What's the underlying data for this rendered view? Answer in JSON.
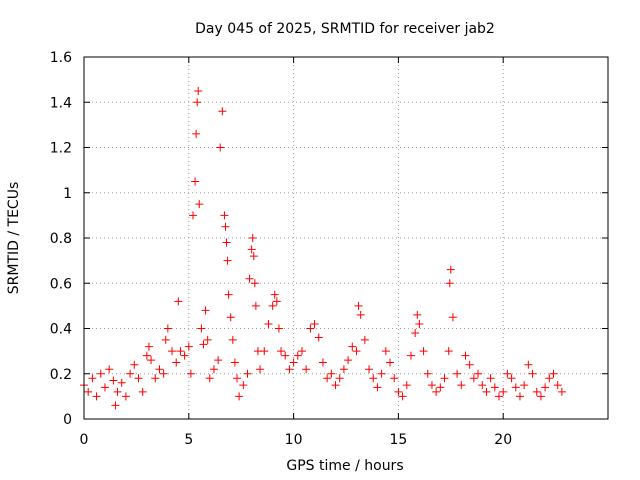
{
  "chart_data": {
    "type": "scatter",
    "title": "Day 045 of 2025, SRMTID for receiver jab2",
    "xlabel": "GPS time / hours",
    "ylabel": "SRMTID / TECUs",
    "xlim": [
      0,
      25
    ],
    "ylim": [
      0,
      1.6
    ],
    "x_ticks": [
      0,
      5,
      10,
      15,
      20
    ],
    "x_tick_labels": [
      "0",
      "5",
      "10",
      "15",
      "20"
    ],
    "y_ticks": [
      0,
      0.2,
      0.4,
      0.6,
      0.8,
      1.0,
      1.2,
      1.4,
      1.6
    ],
    "y_tick_labels": [
      "0",
      "0.2",
      "0.4",
      "0.6",
      "0.8",
      "1",
      "1.2",
      "1.4",
      "1.6"
    ],
    "grid": true,
    "marker": "+",
    "colors": {
      "series": "#ff0000",
      "grid": "#a0a0a0",
      "axes": "#000000"
    },
    "series": [
      {
        "name": "SRMTID",
        "x": [
          0.0,
          0.2,
          0.4,
          0.6,
          0.8,
          1.0,
          1.2,
          1.4,
          1.5,
          1.6,
          1.8,
          2.0,
          2.2,
          2.4,
          2.6,
          2.8,
          3.0,
          3.1,
          3.2,
          3.4,
          3.6,
          3.8,
          3.9,
          4.0,
          4.2,
          4.4,
          4.5,
          4.6,
          4.8,
          5.0,
          5.1,
          5.2,
          5.3,
          5.35,
          5.4,
          5.45,
          5.5,
          5.6,
          5.7,
          5.8,
          5.9,
          6.0,
          6.2,
          6.4,
          6.5,
          6.6,
          6.7,
          6.75,
          6.8,
          6.85,
          6.9,
          7.0,
          7.1,
          7.2,
          7.3,
          7.4,
          7.6,
          7.8,
          7.9,
          8.0,
          8.05,
          8.1,
          8.15,
          8.2,
          8.3,
          8.4,
          8.6,
          8.8,
          9.0,
          9.1,
          9.2,
          9.3,
          9.4,
          9.6,
          9.8,
          10.0,
          10.2,
          10.4,
          10.6,
          10.8,
          11.0,
          11.2,
          11.4,
          11.6,
          11.8,
          12.0,
          12.2,
          12.4,
          12.6,
          12.8,
          13.0,
          13.1,
          13.2,
          13.4,
          13.6,
          13.8,
          14.0,
          14.2,
          14.4,
          14.6,
          14.8,
          15.0,
          15.2,
          15.4,
          15.6,
          15.8,
          15.9,
          16.0,
          16.2,
          16.4,
          16.6,
          16.8,
          17.0,
          17.2,
          17.4,
          17.45,
          17.5,
          17.6,
          17.8,
          18.0,
          18.2,
          18.4,
          18.6,
          18.8,
          19.0,
          19.2,
          19.4,
          19.6,
          19.8,
          20.0,
          20.2,
          20.4,
          20.6,
          20.8,
          21.0,
          21.2,
          21.4,
          21.6,
          21.8,
          22.0,
          22.2,
          22.4,
          22.6,
          22.8
        ],
        "y": [
          0.15,
          0.12,
          0.18,
          0.1,
          0.2,
          0.14,
          0.22,
          0.17,
          0.06,
          0.12,
          0.16,
          0.1,
          0.2,
          0.24,
          0.18,
          0.12,
          0.28,
          0.32,
          0.26,
          0.18,
          0.22,
          0.2,
          0.35,
          0.4,
          0.3,
          0.25,
          0.52,
          0.3,
          0.28,
          0.32,
          0.2,
          0.9,
          1.05,
          1.26,
          1.4,
          1.45,
          0.95,
          0.4,
          0.33,
          0.48,
          0.35,
          0.18,
          0.22,
          0.26,
          1.2,
          1.36,
          0.9,
          0.85,
          0.78,
          0.7,
          0.55,
          0.45,
          0.35,
          0.25,
          0.18,
          0.1,
          0.15,
          0.2,
          0.62,
          0.75,
          0.8,
          0.72,
          0.6,
          0.5,
          0.3,
          0.22,
          0.3,
          0.42,
          0.5,
          0.55,
          0.52,
          0.4,
          0.3,
          0.28,
          0.22,
          0.25,
          0.28,
          0.3,
          0.22,
          0.4,
          0.42,
          0.36,
          0.25,
          0.18,
          0.2,
          0.15,
          0.18,
          0.22,
          0.26,
          0.32,
          0.3,
          0.5,
          0.46,
          0.35,
          0.22,
          0.18,
          0.14,
          0.2,
          0.3,
          0.25,
          0.18,
          0.12,
          0.1,
          0.15,
          0.28,
          0.38,
          0.46,
          0.42,
          0.3,
          0.2,
          0.15,
          0.12,
          0.14,
          0.18,
          0.3,
          0.6,
          0.66,
          0.45,
          0.2,
          0.15,
          0.28,
          0.24,
          0.18,
          0.2,
          0.15,
          0.12,
          0.18,
          0.14,
          0.1,
          0.12,
          0.2,
          0.18,
          0.14,
          0.1,
          0.15,
          0.24,
          0.2,
          0.12,
          0.1,
          0.14,
          0.18,
          0.2,
          0.15,
          0.12
        ]
      }
    ]
  }
}
